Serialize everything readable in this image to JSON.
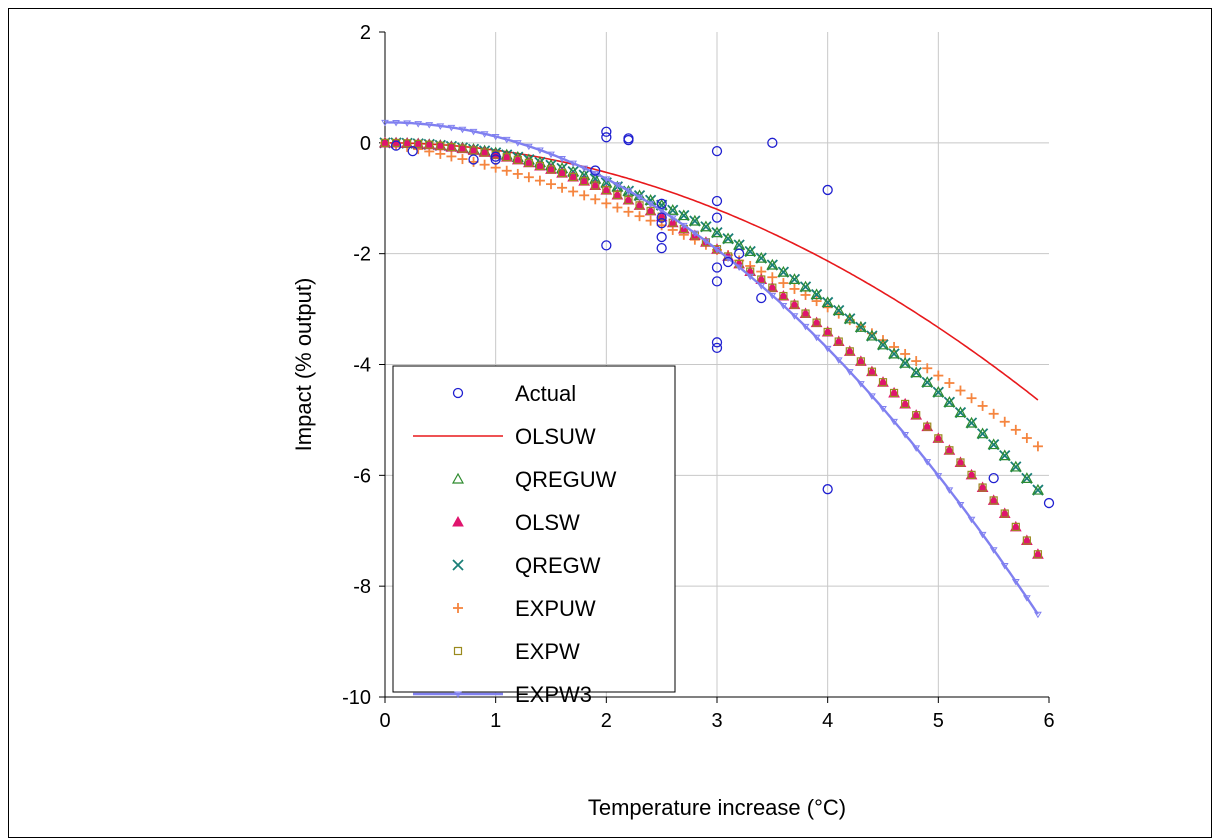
{
  "chart_data": {
    "type": "scatter",
    "xlabel": "Temperature increase (°C)",
    "ylabel": "Impact (% output)",
    "xlim": [
      0,
      6
    ],
    "ylim": [
      -10,
      2
    ],
    "xticks": [
      0,
      1,
      2,
      3,
      4,
      5,
      6
    ],
    "yticks": [
      2,
      0,
      -2,
      -4,
      -6,
      -8,
      -10
    ],
    "grid": true,
    "legend_position": "bottom-left",
    "series": [
      {
        "name": "Actual",
        "kind": "points",
        "marker": "circle-open",
        "color": "#1f1fd0",
        "points": [
          [
            0.1,
            -0.05
          ],
          [
            0.25,
            -0.15
          ],
          [
            0.8,
            -0.3
          ],
          [
            1.0,
            -0.3
          ],
          [
            1.0,
            -0.25
          ],
          [
            1.9,
            -0.5
          ],
          [
            2.0,
            0.2
          ],
          [
            2.0,
            0.1
          ],
          [
            2.0,
            -1.85
          ],
          [
            2.2,
            0.05
          ],
          [
            2.2,
            0.08
          ],
          [
            2.5,
            -1.1
          ],
          [
            2.5,
            -1.35
          ],
          [
            2.5,
            -1.45
          ],
          [
            2.5,
            -1.7
          ],
          [
            2.5,
            -1.9
          ],
          [
            3.0,
            -0.15
          ],
          [
            3.0,
            -1.05
          ],
          [
            3.0,
            -1.35
          ],
          [
            3.0,
            -2.25
          ],
          [
            3.0,
            -2.5
          ],
          [
            3.0,
            -3.6
          ],
          [
            3.0,
            -3.7
          ],
          [
            3.1,
            -2.15
          ],
          [
            3.2,
            -2.0
          ],
          [
            3.4,
            -2.8
          ],
          [
            3.5,
            0.0
          ],
          [
            4.0,
            -0.85
          ],
          [
            4.0,
            -6.25
          ],
          [
            5.5,
            -6.05
          ],
          [
            6.0,
            -6.5
          ]
        ]
      },
      {
        "name": "OLSUW",
        "kind": "line",
        "color": "#e8191c",
        "a": 0.0,
        "b": 0.0,
        "c": -0.1333,
        "domain": [
          0,
          5.9
        ]
      },
      {
        "name": "QREGUW",
        "kind": "markers",
        "marker": "triangle-open",
        "color": "#2e8b2e",
        "a": 0.0,
        "b": 0.0,
        "c": -0.18,
        "domain": [
          0,
          5.9
        ]
      },
      {
        "name": "OLSW",
        "kind": "markers",
        "marker": "triangle-filled",
        "color": "#e0156e",
        "a": 0.0,
        "b": 0.0,
        "c": -0.2133,
        "domain": [
          0,
          5.9
        ]
      },
      {
        "name": "QREGW",
        "kind": "markers",
        "marker": "x",
        "color": "#1a7f77",
        "a": 0.0,
        "b": 0.0,
        "c": -0.18,
        "domain": [
          0,
          5.9
        ]
      },
      {
        "name": "EXPUW",
        "kind": "markers",
        "marker": "plus",
        "color": "#f5853f",
        "a": 0.0,
        "b": -0.35,
        "c": -0.098,
        "domain": [
          0,
          5.9
        ]
      },
      {
        "name": "EXPW",
        "kind": "markers",
        "marker": "square-open",
        "color": "#9a8a1e",
        "a": 0.0,
        "b": 0.0,
        "c": -0.2133,
        "domain": [
          0,
          5.9
        ]
      },
      {
        "name": "EXPW3",
        "kind": "line-markers",
        "marker": "triangle-down-small",
        "color": "#8080f0",
        "a": 0.37,
        "b": 0.0,
        "c": -0.255,
        "d": 0.0,
        "domain": [
          0,
          5.9
        ]
      }
    ]
  }
}
